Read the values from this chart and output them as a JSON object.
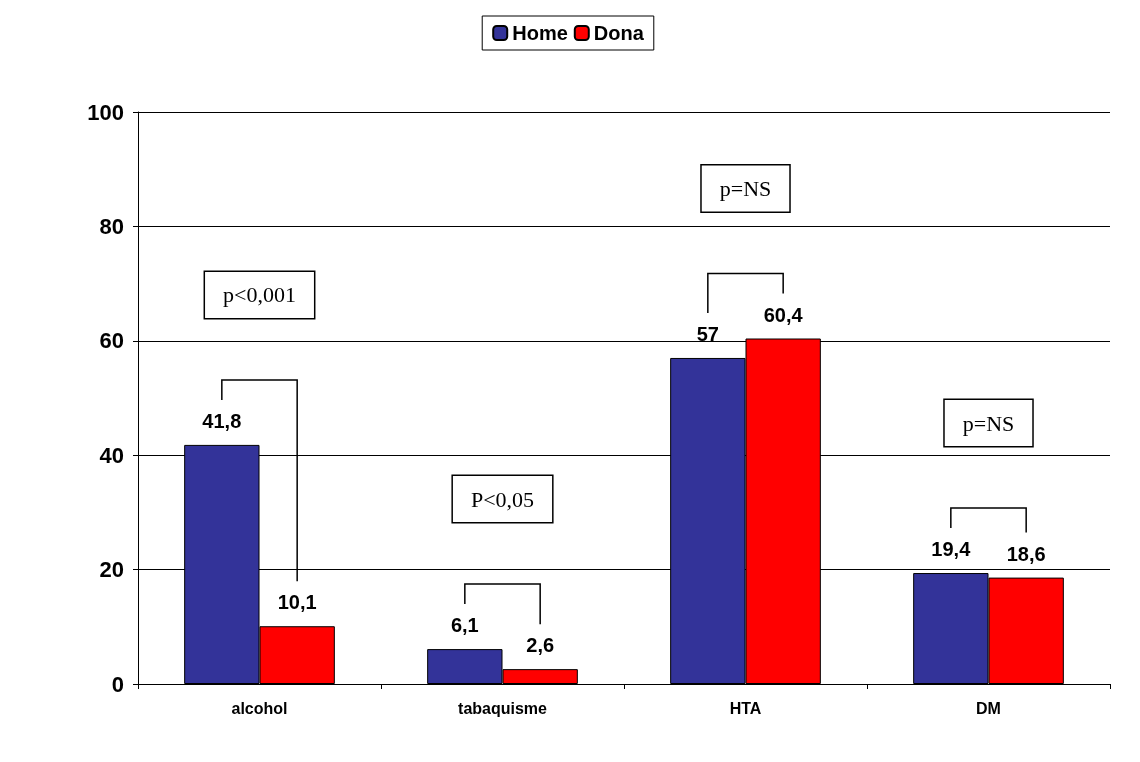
{
  "chart_data": {
    "type": "bar",
    "categories": [
      "alcohol",
      "tabaquisme",
      "HTA",
      "DM"
    ],
    "series": [
      {
        "name": "Home",
        "color": "#333399",
        "values": [
          41.8,
          6.1,
          57,
          19.4
        ],
        "value_labels": [
          "41,8",
          "6,1",
          "57",
          "19,4"
        ]
      },
      {
        "name": "Dona",
        "color": "#ff0000",
        "values": [
          10.1,
          2.6,
          60.4,
          18.6
        ],
        "value_labels": [
          "10,1",
          "2,6",
          "60,4",
          "18,6"
        ]
      }
    ],
    "ylim": [
      0,
      100
    ],
    "yticks": [
      0,
      20,
      40,
      60,
      80,
      100
    ],
    "grid": "y",
    "legend": "top",
    "annotations": [
      "p<0,001",
      "P<0,05",
      "p=NS",
      "p=NS"
    ]
  }
}
